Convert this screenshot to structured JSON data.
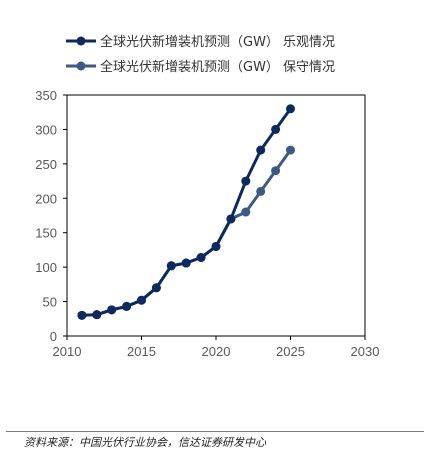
{
  "chart_data": {
    "type": "line",
    "x": [
      2011,
      2012,
      2013,
      2014,
      2015,
      2016,
      2017,
      2018,
      2019,
      2020,
      2021,
      2022,
      2023,
      2024,
      2025
    ],
    "series": [
      {
        "name": "全球光伏新增装机预测（GW） 乐观情况",
        "color": "#0d2a5e",
        "values": [
          30,
          31,
          38,
          43,
          52,
          70,
          102,
          106,
          114,
          130,
          170,
          225,
          270,
          300,
          330
        ]
      },
      {
        "name": "全球光伏新增装机预测（GW） 保守情况",
        "color": "#3d5a86",
        "values": [
          30,
          31,
          38,
          43,
          52,
          70,
          102,
          106,
          114,
          130,
          170,
          180,
          210,
          240,
          270
        ]
      }
    ],
    "xlim": [
      2010,
      2030
    ],
    "ylim": [
      0,
      350
    ],
    "xticks": [
      "2010",
      "2015",
      "2020",
      "2025",
      "2030"
    ],
    "yticks": [
      "0",
      "50",
      "100",
      "150",
      "200",
      "250",
      "300",
      "350"
    ],
    "grid": false,
    "legend_position": "top"
  },
  "source": "资料来源：中国光伏行业协会，信达证券研发中心"
}
